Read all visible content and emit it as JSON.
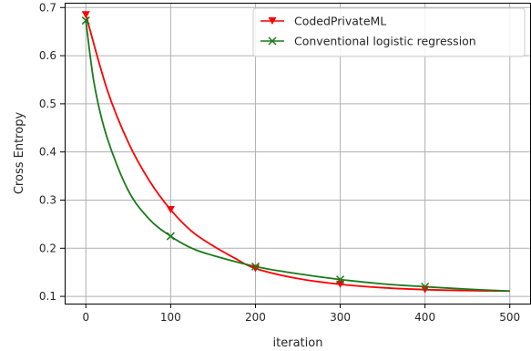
{
  "chart_data": {
    "type": "line",
    "xlabel": "iteration",
    "ylabel": "Cross Entropy",
    "xlim": [
      -25,
      525
    ],
    "ylim": [
      0.085,
      0.71
    ],
    "xticks": [
      0,
      100,
      200,
      300,
      400,
      500
    ],
    "yticks": [
      0.1,
      0.2,
      0.3,
      0.4,
      0.5,
      0.6,
      0.7
    ],
    "xtick_labels": [
      "0",
      "100",
      "200",
      "300",
      "400",
      "500"
    ],
    "ytick_labels": [
      "0.1",
      "0.2",
      "0.3",
      "0.4",
      "0.5",
      "0.6",
      "0.7"
    ],
    "grid": true,
    "legend_position": "upper right",
    "series": [
      {
        "name": "CodedPrivateML",
        "color": "#ff0000",
        "marker": "triangle-down",
        "x": [
          0,
          25,
          50,
          75,
          100,
          125,
          150,
          175,
          200,
          250,
          300,
          350,
          400,
          450,
          500
        ],
        "y": [
          0.685,
          0.53,
          0.42,
          0.34,
          0.28,
          0.235,
          0.205,
          0.18,
          0.158,
          0.137,
          0.125,
          0.118,
          0.114,
          0.112,
          0.111
        ],
        "marker_x": [
          0,
          100,
          200,
          300,
          400
        ],
        "marker_y": [
          0.685,
          0.28,
          0.158,
          0.125,
          0.114
        ]
      },
      {
        "name": "Conventional logistic regression",
        "color": "#1a7a1a",
        "marker": "x",
        "x": [
          0,
          10,
          25,
          50,
          75,
          100,
          125,
          150,
          200,
          250,
          300,
          350,
          400,
          450,
          500
        ],
        "y": [
          0.673,
          0.54,
          0.43,
          0.32,
          0.26,
          0.225,
          0.2,
          0.185,
          0.162,
          0.147,
          0.135,
          0.126,
          0.12,
          0.115,
          0.111
        ],
        "marker_x": [
          0,
          100,
          200,
          300,
          400
        ],
        "marker_y": [
          0.673,
          0.225,
          0.162,
          0.135,
          0.12
        ]
      }
    ]
  }
}
